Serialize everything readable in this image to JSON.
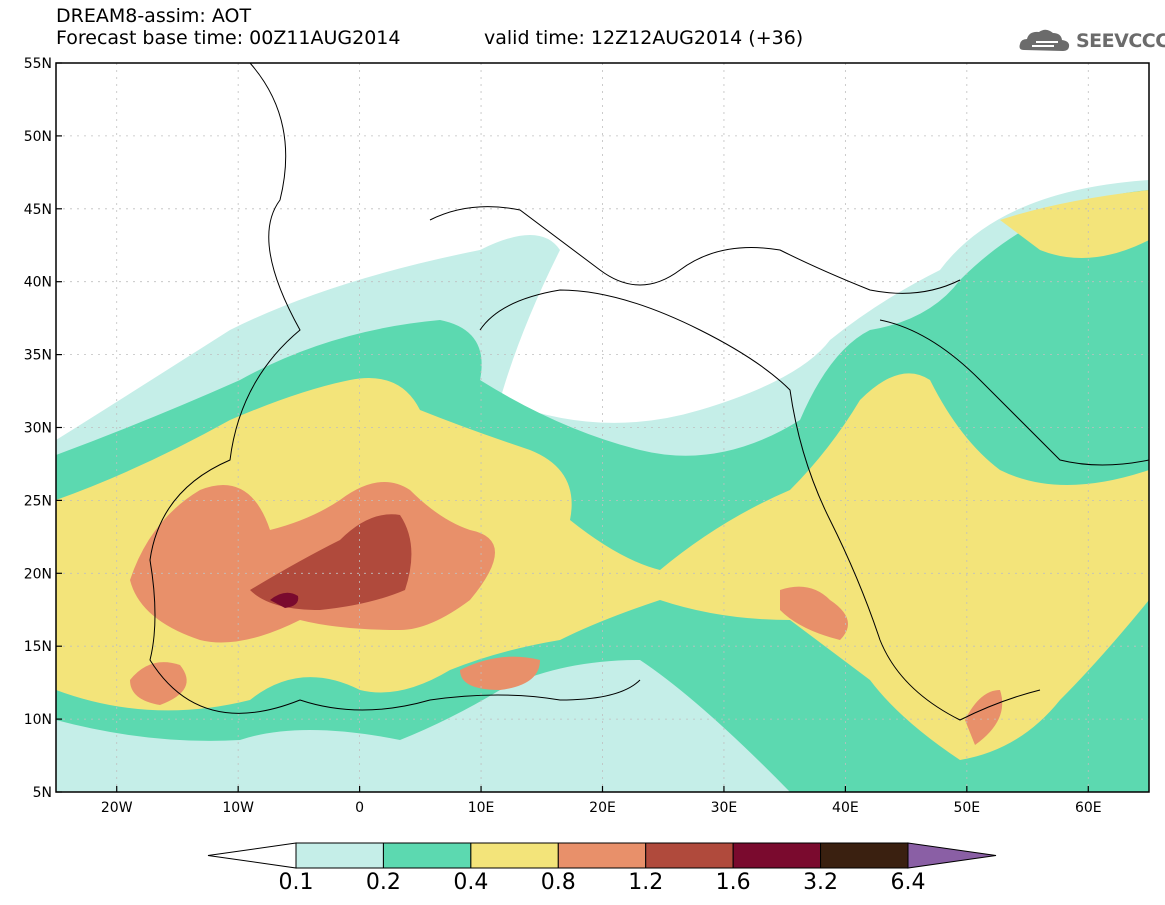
{
  "header": {
    "product": "DREAM8-assim: AOT",
    "base_time": "Forecast base time: 00Z11AUG2014",
    "valid_time": "valid time: 12Z12AUG2014 (+36)",
    "logo_text": "SEEVCCC"
  },
  "map": {
    "lon_range": [
      -25,
      65
    ],
    "lat_range": [
      5,
      55
    ],
    "lon_ticks": [
      {
        "value": -20,
        "label": "20W"
      },
      {
        "value": -10,
        "label": "10W"
      },
      {
        "value": 0,
        "label": "0"
      },
      {
        "value": 10,
        "label": "10E"
      },
      {
        "value": 20,
        "label": "20E"
      },
      {
        "value": 30,
        "label": "30E"
      },
      {
        "value": 40,
        "label": "40E"
      },
      {
        "value": 50,
        "label": "50E"
      },
      {
        "value": 60,
        "label": "60E"
      }
    ],
    "lat_ticks": [
      {
        "value": 55,
        "label": "55N"
      },
      {
        "value": 50,
        "label": "50N"
      },
      {
        "value": 45,
        "label": "45N"
      },
      {
        "value": 40,
        "label": "40N"
      },
      {
        "value": 35,
        "label": "35N"
      },
      {
        "value": 30,
        "label": "30N"
      },
      {
        "value": 25,
        "label": "25N"
      },
      {
        "value": 20,
        "label": "20N"
      },
      {
        "value": 15,
        "label": "15N"
      },
      {
        "value": 10,
        "label": "10N"
      },
      {
        "value": 5,
        "label": "5N"
      }
    ]
  },
  "colorbar": {
    "levels": [
      "0.1",
      "0.2",
      "0.4",
      "0.8",
      "1.2",
      "1.6",
      "3.2",
      "6.4"
    ],
    "colors": [
      "#ffffff",
      "#c5eee8",
      "#5cd9b0",
      "#f3e47a",
      "#e8906a",
      "#b04a3c",
      "#7a0a2e",
      "#3a2010",
      "#8a5fa5"
    ]
  }
}
